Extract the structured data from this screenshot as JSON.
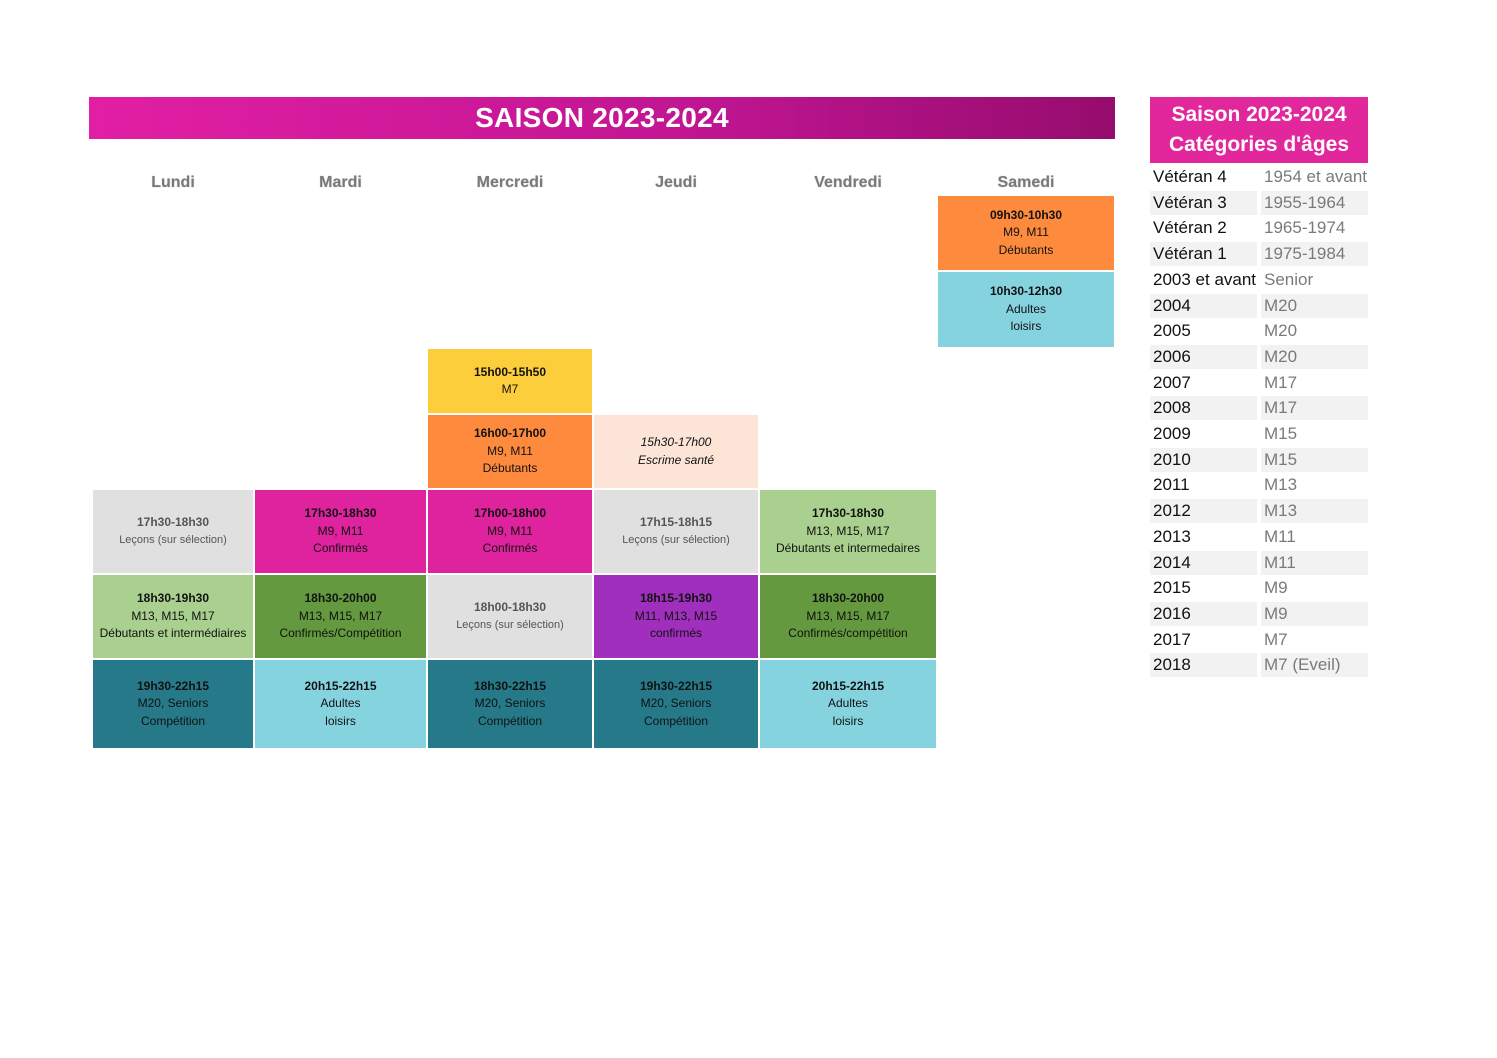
{
  "title": "SAISON 2023-2024",
  "days": [
    "Lundi",
    "Mardi",
    "Mercredi",
    "Jeudi",
    "Vendredi",
    "Samedi"
  ],
  "colors": {
    "orange": "#fe8b3d",
    "light_blue": "#86d3e0",
    "yellow": "#fdce3c",
    "peach": "#fce4d6",
    "light_grey": "#e0e0e0",
    "magenta": "#df239e",
    "light_green": "#a9d08e",
    "dark_green": "#64993f",
    "purple": "#9f2fbc",
    "teal": "#267989",
    "banner": "#c01592",
    "side_header": "#e2279c"
  },
  "slots": {
    "sam_0930": {
      "time": "09h30-10h30",
      "l1": "M9, M11",
      "l2": "Débutants"
    },
    "sam_1030": {
      "time": "10h30-12h30",
      "l1": "Adultes",
      "l2": "loisirs"
    },
    "mer_1500": {
      "time": "15h00-15h50",
      "l1": "M7"
    },
    "mer_1600": {
      "time": "16h00-17h00",
      "l1": "M9, M11",
      "l2": "Débutants"
    },
    "jeu_1530": {
      "time": "15h30-17h00",
      "l1": "Escrime santé"
    },
    "lun_1730": {
      "time": "17h30-18h30",
      "l1": "Leçons (sur sélection)"
    },
    "mar_1730": {
      "time": "17h30-18h30",
      "l1": "M9, M11",
      "l2": "Confirmés"
    },
    "mer_1700": {
      "time": "17h00-18h00",
      "l1": "M9, M11",
      "l2": "Confirmés"
    },
    "jeu_1715": {
      "time": "17h15-18h15",
      "l1": "Leçons (sur sélection)"
    },
    "ven_1730": {
      "time": "17h30-18h30",
      "l1": "M13, M15, M17",
      "l2": "Débutants et intermedaires"
    },
    "lun_1830": {
      "time": "18h30-19h30",
      "l1": "M13, M15, M17",
      "l2": "Débutants et intermédiaires"
    },
    "mar_1830": {
      "time": "18h30-20h00",
      "l1": "M13, M15, M17",
      "l2": "Confirmés/Compétition"
    },
    "mer_1800": {
      "time": "18h00-18h30",
      "l1": "Leçons (sur sélection)"
    },
    "jeu_1815": {
      "time": "18h15-19h30",
      "l1": "M11, M13, M15",
      "l2": "confirmés"
    },
    "ven_1830": {
      "time": "18h30-20h00",
      "l1": "M13, M15, M17",
      "l2": "Confirmés/compétition"
    },
    "lun_1930": {
      "time": "19h30-22h15",
      "l1": "M20, Seniors",
      "l2": "Compétition"
    },
    "mar_2015": {
      "time": "20h15-22h15",
      "l1": "Adultes",
      "l2": "loisirs"
    },
    "mer_1830": {
      "time": "18h30-22h15",
      "l1": "M20, Seniors",
      "l2": "Compétition"
    },
    "jeu_1930": {
      "time": "19h30-22h15",
      "l1": "M20, Seniors",
      "l2": "Compétition"
    },
    "ven_2015": {
      "time": "20h15-22h15",
      "l1": "Adultes",
      "l2": "loisirs"
    }
  },
  "categories": {
    "header_line1": "Saison 2023-2024",
    "header_line2": "Catégories d'âges",
    "rows": [
      {
        "k": "Vétéran 4",
        "v": "1954 et avant"
      },
      {
        "k": "Vétéran 3",
        "v": "1955-1964"
      },
      {
        "k": "Vétéran 2",
        "v": "1965-1974"
      },
      {
        "k": "Vétéran 1",
        "v": "1975-1984"
      },
      {
        "k": "2003 et avant",
        "v": "Senior"
      },
      {
        "k": "2004",
        "v": "M20"
      },
      {
        "k": "2005",
        "v": "M20"
      },
      {
        "k": "2006",
        "v": "M20"
      },
      {
        "k": "2007",
        "v": "M17"
      },
      {
        "k": "2008",
        "v": "M17"
      },
      {
        "k": "2009",
        "v": "M15"
      },
      {
        "k": "2010",
        "v": "M15"
      },
      {
        "k": "2011",
        "v": "M13"
      },
      {
        "k": "2012",
        "v": "M13"
      },
      {
        "k": "2013",
        "v": "M11"
      },
      {
        "k": "2014",
        "v": "M11"
      },
      {
        "k": "2015",
        "v": "M9"
      },
      {
        "k": "2016",
        "v": "M9"
      },
      {
        "k": "2017",
        "v": "M7"
      },
      {
        "k": "2018",
        "v": "M7 (Eveil)"
      }
    ]
  }
}
